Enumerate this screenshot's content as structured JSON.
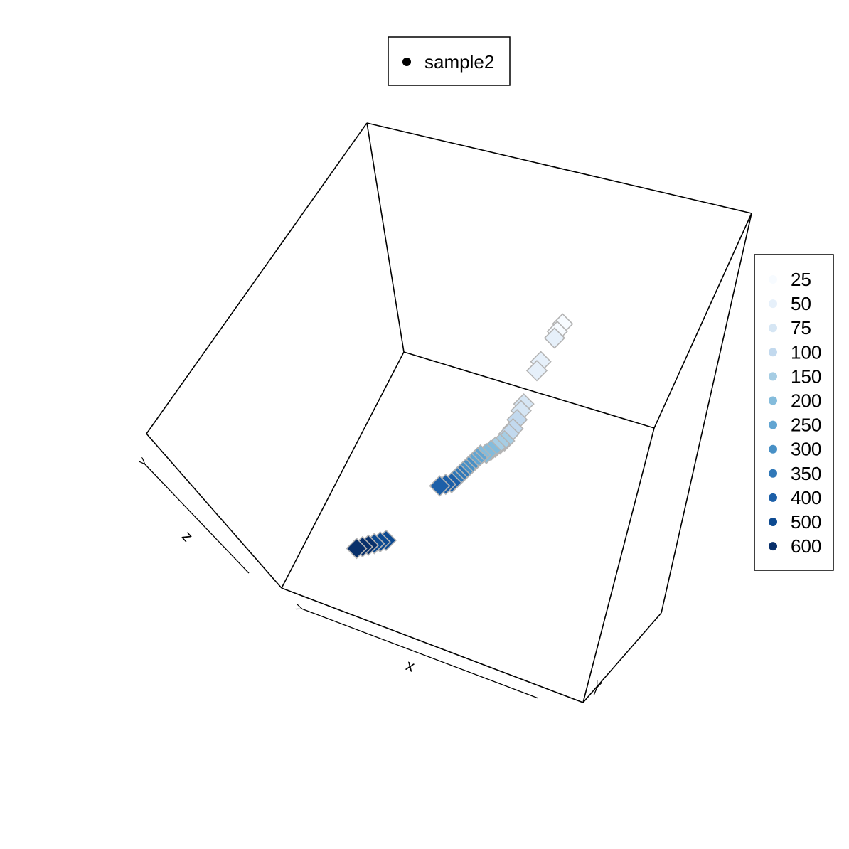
{
  "chart_data": {
    "type": "scatter",
    "projection": "3d",
    "title": "",
    "xlabel": "x",
    "ylabel": "",
    "zlabel": "z",
    "grid": false,
    "legend": {
      "position": "top-center",
      "entries": [
        {
          "name": "sample2",
          "symbol": "filled-circle",
          "color": "#000000"
        }
      ]
    },
    "color_legend": {
      "position": "right",
      "labels": [
        "25",
        "50",
        "75",
        "100",
        "150",
        "200",
        "250",
        "300",
        "350",
        "400",
        "500",
        "600"
      ],
      "colors": [
        "#f7fbff",
        "#e6f0fa",
        "#d6e6f4",
        "#c2d9ee",
        "#a6cde4",
        "#84bcdc",
        "#62a5d2",
        "#4890c6",
        "#3078b8",
        "#1c5fa8",
        "#0d4a91",
        "#08306b"
      ]
    },
    "marker": {
      "shape": "diamond",
      "edge_color": "#b4b4b4"
    },
    "series": [
      {
        "name": "sample2",
        "points": [
          {
            "x": 0.96,
            "y": 0.97,
            "z": 0.94,
            "level": "25"
          },
          {
            "x": 0.95,
            "y": 0.94,
            "z": 0.93,
            "level": "25"
          },
          {
            "x": 0.94,
            "y": 0.92,
            "z": 0.91,
            "level": "50"
          },
          {
            "x": 0.9,
            "y": 0.84,
            "z": 0.85,
            "level": "50"
          },
          {
            "x": 0.89,
            "y": 0.81,
            "z": 0.83,
            "level": "50"
          },
          {
            "x": 0.86,
            "y": 0.7,
            "z": 0.76,
            "level": "75"
          },
          {
            "x": 0.85,
            "y": 0.68,
            "z": 0.74,
            "level": "75"
          },
          {
            "x": 0.84,
            "y": 0.65,
            "z": 0.72,
            "level": "100"
          },
          {
            "x": 0.83,
            "y": 0.62,
            "z": 0.7,
            "level": "100"
          },
          {
            "x": 0.82,
            "y": 0.6,
            "z": 0.69,
            "level": "100"
          },
          {
            "x": 0.8,
            "y": 0.58,
            "z": 0.66,
            "level": "150"
          },
          {
            "x": 0.78,
            "y": 0.57,
            "z": 0.64,
            "level": "150"
          },
          {
            "x": 0.76,
            "y": 0.56,
            "z": 0.62,
            "level": "150"
          },
          {
            "x": 0.74,
            "y": 0.55,
            "z": 0.6,
            "level": "200"
          },
          {
            "x": 0.72,
            "y": 0.54,
            "z": 0.58,
            "level": "200"
          },
          {
            "x": 0.7,
            "y": 0.53,
            "z": 0.57,
            "level": "200"
          },
          {
            "x": 0.69,
            "y": 0.52,
            "z": 0.56,
            "level": "250"
          },
          {
            "x": 0.68,
            "y": 0.51,
            "z": 0.55,
            "level": "250"
          },
          {
            "x": 0.67,
            "y": 0.5,
            "z": 0.54,
            "level": "250"
          },
          {
            "x": 0.66,
            "y": 0.49,
            "z": 0.53,
            "level": "300"
          },
          {
            "x": 0.65,
            "y": 0.48,
            "z": 0.52,
            "level": "300"
          },
          {
            "x": 0.64,
            "y": 0.47,
            "z": 0.51,
            "level": "300"
          },
          {
            "x": 0.63,
            "y": 0.46,
            "z": 0.5,
            "level": "350"
          },
          {
            "x": 0.62,
            "y": 0.45,
            "z": 0.49,
            "level": "350"
          },
          {
            "x": 0.61,
            "y": 0.44,
            "z": 0.48,
            "level": "350"
          },
          {
            "x": 0.6,
            "y": 0.43,
            "z": 0.47,
            "level": "400"
          },
          {
            "x": 0.58,
            "y": 0.42,
            "z": 0.46,
            "level": "400"
          },
          {
            "x": 0.56,
            "y": 0.41,
            "z": 0.45,
            "level": "400"
          },
          {
            "x": 0.4,
            "y": 0.2,
            "z": 0.3,
            "level": "500"
          },
          {
            "x": 0.38,
            "y": 0.19,
            "z": 0.29,
            "level": "500"
          },
          {
            "x": 0.36,
            "y": 0.18,
            "z": 0.28,
            "level": "500"
          },
          {
            "x": 0.34,
            "y": 0.17,
            "z": 0.27,
            "level": "600"
          },
          {
            "x": 0.32,
            "y": 0.16,
            "z": 0.26,
            "level": "600"
          },
          {
            "x": 0.3,
            "y": 0.15,
            "z": 0.25,
            "level": "600"
          }
        ]
      }
    ]
  }
}
